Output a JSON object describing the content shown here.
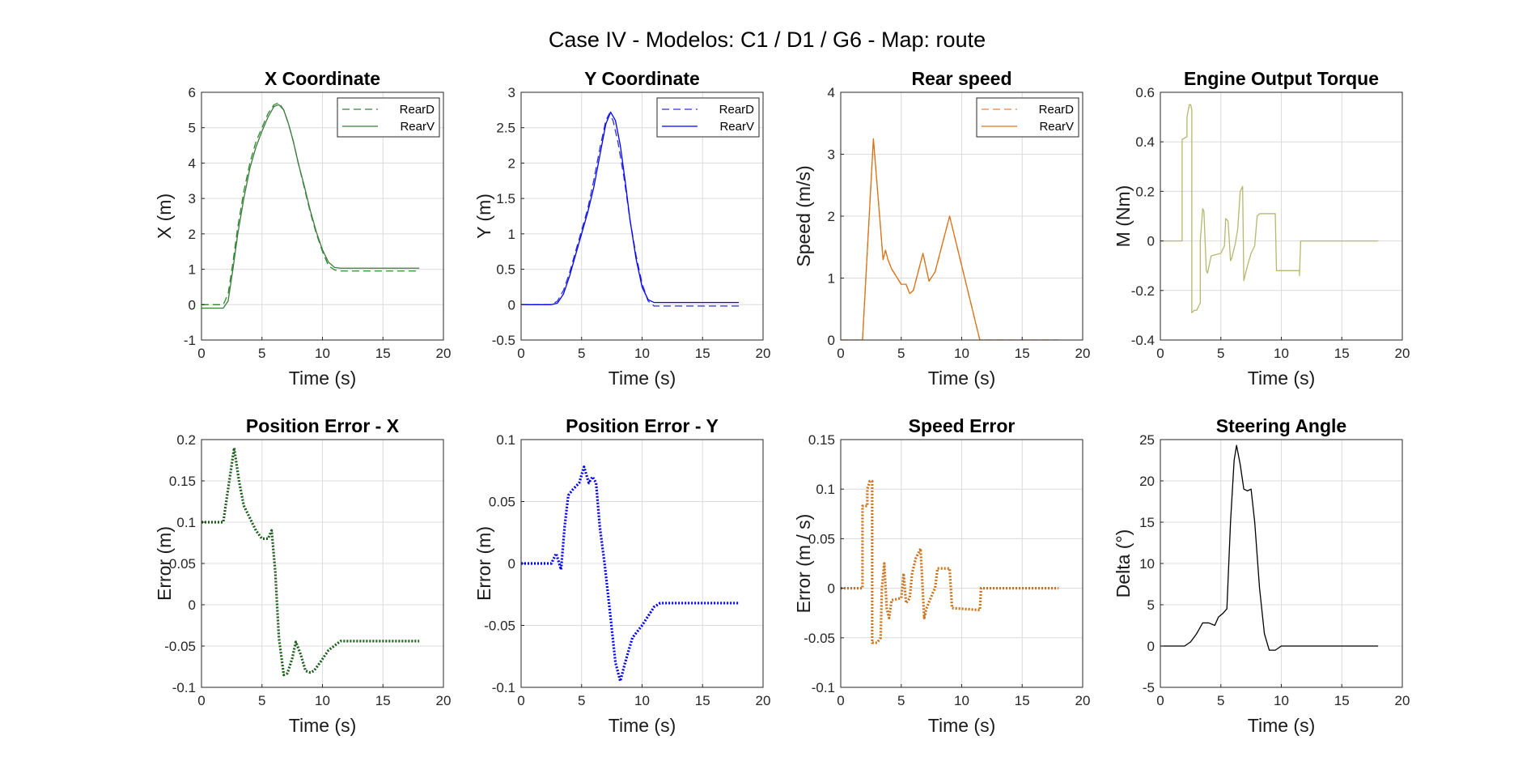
{
  "figure": {
    "title": "Case IV - Modelos: C1 / D1 / G6 - Map: route"
  },
  "chart_data": [
    {
      "type": "line",
      "title": "X Coordinate",
      "xlabel": "Time (s)",
      "ylabel": "X (m)",
      "xlim": [
        0,
        20
      ],
      "ylim": [
        -1,
        6
      ],
      "xticks": [
        0,
        5,
        10,
        15,
        20
      ],
      "yticks": [
        -1,
        0,
        1,
        2,
        3,
        4,
        5,
        6
      ],
      "grid": true,
      "legend": "top-right",
      "series": [
        {
          "name": "RearD",
          "color": "#2e8b2e",
          "style": "dashed",
          "x": [
            0,
            1.8,
            2.2,
            2.6,
            3,
            3.5,
            4,
            4.5,
            5,
            5.5,
            6,
            6.4,
            6.8,
            7.2,
            7.6,
            8,
            8.5,
            9,
            9.5,
            10,
            10.5,
            11,
            11.5,
            12,
            14,
            16,
            18
          ],
          "y": [
            0,
            0,
            0.3,
            1.2,
            2.2,
            3.2,
            4.0,
            4.6,
            5.0,
            5.4,
            5.65,
            5.7,
            5.5,
            5.1,
            4.6,
            4.0,
            3.3,
            2.6,
            2.0,
            1.5,
            1.1,
            0.98,
            0.95,
            0.95,
            0.95,
            0.95,
            0.95
          ]
        },
        {
          "name": "RearV",
          "color": "#3d7a3d",
          "style": "solid",
          "x": [
            0,
            1.8,
            2.2,
            2.6,
            3,
            3.5,
            4,
            4.5,
            5,
            5.5,
            6,
            6.4,
            6.8,
            7.2,
            7.6,
            8,
            8.5,
            9,
            9.5,
            10,
            10.5,
            11,
            11.5,
            12,
            14,
            16,
            18
          ],
          "y": [
            -0.1,
            -0.1,
            0.1,
            1.0,
            2.0,
            3.0,
            3.85,
            4.45,
            4.9,
            5.3,
            5.6,
            5.65,
            5.5,
            5.1,
            4.6,
            4.0,
            3.35,
            2.65,
            2.05,
            1.55,
            1.2,
            1.05,
            1.03,
            1.03,
            1.03,
            1.03,
            1.03
          ]
        }
      ]
    },
    {
      "type": "line",
      "title": "Y Coordinate",
      "xlabel": "Time (s)",
      "ylabel": "Y (m)",
      "xlim": [
        0,
        20
      ],
      "ylim": [
        -0.5,
        3
      ],
      "xticks": [
        0,
        5,
        10,
        15,
        20
      ],
      "yticks": [
        -0.5,
        0,
        0.5,
        1,
        1.5,
        2,
        2.5,
        3
      ],
      "grid": true,
      "legend": "top-right",
      "series": [
        {
          "name": "RearD",
          "color": "#3333cc",
          "style": "dashed",
          "x": [
            0,
            2.5,
            3,
            3.5,
            4,
            4.5,
            5,
            5.5,
            6,
            6.5,
            7,
            7.3,
            7.6,
            8,
            8.5,
            9,
            9.5,
            10,
            10.5,
            11,
            12,
            14,
            16,
            18
          ],
          "y": [
            0,
            0,
            0.05,
            0.2,
            0.45,
            0.75,
            1.05,
            1.35,
            1.75,
            2.2,
            2.6,
            2.7,
            2.6,
            2.3,
            1.8,
            1.2,
            0.7,
            0.3,
            0.05,
            -0.02,
            -0.02,
            -0.02,
            -0.02,
            -0.02
          ]
        },
        {
          "name": "RearV",
          "color": "#0000ff",
          "style": "solid",
          "x": [
            0,
            2.5,
            3,
            3.5,
            4,
            4.5,
            5,
            5.5,
            6,
            6.5,
            7,
            7.4,
            7.8,
            8.2,
            8.6,
            9,
            9.5,
            10,
            10.5,
            11,
            12,
            14,
            16,
            18
          ],
          "y": [
            0,
            0,
            0.02,
            0.15,
            0.4,
            0.7,
            1.0,
            1.3,
            1.65,
            2.1,
            2.55,
            2.72,
            2.6,
            2.25,
            1.75,
            1.2,
            0.65,
            0.25,
            0.07,
            0.03,
            0.03,
            0.03,
            0.03,
            0.03
          ]
        }
      ]
    },
    {
      "type": "line",
      "title": "Rear speed",
      "xlabel": "Time (s)",
      "ylabel": "Speed (m/s)",
      "xlim": [
        0,
        20
      ],
      "ylim": [
        0,
        4
      ],
      "xticks": [
        0,
        5,
        10,
        15,
        20
      ],
      "yticks": [
        0,
        1,
        2,
        3,
        4
      ],
      "grid": true,
      "legend": "top-right",
      "series": [
        {
          "name": "RearD",
          "color": "#e6862e",
          "style": "dashed",
          "x": [
            0,
            1.8,
            2.7,
            3.5,
            3.7,
            3.9,
            4.2,
            5.0,
            5.4,
            5.7,
            6.0,
            6.4,
            6.8,
            7.3,
            7.8,
            9.0,
            11.5,
            12,
            18
          ],
          "y": [
            0,
            0,
            3.25,
            1.3,
            1.45,
            1.3,
            1.15,
            0.9,
            0.9,
            0.75,
            0.8,
            1.1,
            1.4,
            0.95,
            1.1,
            2.0,
            0,
            0,
            0
          ]
        },
        {
          "name": "RearV",
          "color": "#d9731a",
          "style": "solid",
          "x": [
            0,
            1.8,
            2.7,
            3.5,
            3.7,
            3.9,
            4.2,
            5.0,
            5.4,
            5.7,
            6.0,
            6.4,
            6.8,
            7.3,
            7.8,
            9.0,
            11.5,
            12,
            18
          ],
          "y": [
            0,
            0,
            3.25,
            1.3,
            1.45,
            1.3,
            1.15,
            0.9,
            0.9,
            0.75,
            0.8,
            1.1,
            1.4,
            0.95,
            1.1,
            2.0,
            0,
            0,
            0
          ]
        }
      ]
    },
    {
      "type": "line",
      "title": "Engine Output Torque",
      "xlabel": "Time (s)",
      "ylabel": "M (Nm)",
      "xlim": [
        0,
        20
      ],
      "ylim": [
        -0.4,
        0.6
      ],
      "xticks": [
        0,
        5,
        10,
        15,
        20
      ],
      "yticks": [
        -0.4,
        -0.2,
        0,
        0.2,
        0.4,
        0.6
      ],
      "grid": true,
      "legend": "none",
      "series": [
        {
          "color": "#b5b86e",
          "style": "solid",
          "x": [
            0,
            1.8,
            1.8,
            2.2,
            2.2,
            2.4,
            2.5,
            2.6,
            2.6,
            2.8,
            3.0,
            3.3,
            3.3,
            3.5,
            3.6,
            3.8,
            3.9,
            4.2,
            5.0,
            5.3,
            5.4,
            5.6,
            5.8,
            5.9,
            6.2,
            6.4,
            6.6,
            6.8,
            6.9,
            7.2,
            7.5,
            7.8,
            8.0,
            8.2,
            8.8,
            9.0,
            9.5,
            9.6,
            10.5,
            11.5,
            11.5,
            11.6,
            13,
            18
          ],
          "y": [
            0,
            0,
            0.41,
            0.42,
            0.5,
            0.55,
            0.55,
            0.53,
            -0.29,
            -0.28,
            -0.28,
            -0.25,
            0,
            0.13,
            0.12,
            -0.12,
            -0.13,
            -0.06,
            -0.05,
            -0.02,
            0.09,
            0.08,
            -0.08,
            -0.07,
            -0.01,
            0.05,
            0.2,
            0.22,
            -0.16,
            -0.1,
            -0.05,
            -0.02,
            0.1,
            0.11,
            0.11,
            0.11,
            0.11,
            -0.12,
            -0.12,
            -0.12,
            -0.14,
            0,
            0,
            0
          ]
        }
      ]
    },
    {
      "type": "line",
      "title": "Position Error - X",
      "xlabel": "Time (s)",
      "ylabel": "Error (m)",
      "xlim": [
        0,
        20
      ],
      "ylim": [
        -0.1,
        0.2
      ],
      "xticks": [
        0,
        5,
        10,
        15,
        20
      ],
      "yticks": [
        -0.1,
        -0.05,
        0,
        0.05,
        0.1,
        0.15,
        0.2
      ],
      "grid": true,
      "legend": "none",
      "series": [
        {
          "color": "#1a5c1a",
          "style": "dotted",
          "x": [
            0,
            1.8,
            2.3,
            2.7,
            3.1,
            3.5,
            4.0,
            4.5,
            5.0,
            5.5,
            5.8,
            6.1,
            6.4,
            6.8,
            7.1,
            7.5,
            7.8,
            8.2,
            8.6,
            9.0,
            9.3,
            9.8,
            10.5,
            11.5,
            12,
            14,
            16,
            18
          ],
          "y": [
            0.1,
            0.1,
            0.15,
            0.19,
            0.15,
            0.12,
            0.105,
            0.09,
            0.08,
            0.08,
            0.09,
            0.04,
            -0.04,
            -0.085,
            -0.083,
            -0.065,
            -0.045,
            -0.06,
            -0.08,
            -0.082,
            -0.08,
            -0.07,
            -0.055,
            -0.044,
            -0.044,
            -0.044,
            -0.044,
            -0.044
          ]
        }
      ]
    },
    {
      "type": "line",
      "title": "Position Error - Y",
      "xlabel": "Time (s)",
      "ylabel": "Error (m)",
      "xlim": [
        0,
        20
      ],
      "ylim": [
        -0.1,
        0.1
      ],
      "xticks": [
        0,
        5,
        10,
        15,
        20
      ],
      "yticks": [
        -0.1,
        -0.05,
        0,
        0.05,
        0.1
      ],
      "grid": true,
      "legend": "none",
      "series": [
        {
          "color": "#0000ee",
          "style": "dotted",
          "x": [
            0,
            2.5,
            2.9,
            3.3,
            3.6,
            3.9,
            4.3,
            4.8,
            5.2,
            5.6,
            5.9,
            6.2,
            6.5,
            6.9,
            7.3,
            7.8,
            8.2,
            8.6,
            9.2,
            10,
            11.0,
            11.5,
            13,
            16,
            18
          ],
          "y": [
            0,
            0,
            0.008,
            -0.005,
            0.03,
            0.055,
            0.06,
            0.065,
            0.078,
            0.065,
            0.07,
            0.065,
            0.03,
            0.0,
            -0.035,
            -0.08,
            -0.095,
            -0.08,
            -0.06,
            -0.05,
            -0.035,
            -0.032,
            -0.032,
            -0.032,
            -0.032
          ]
        }
      ]
    },
    {
      "type": "line",
      "title": "Speed Error",
      "xlabel": "Time (s)",
      "ylabel": "Error (m / s)",
      "xlim": [
        0,
        20
      ],
      "ylim": [
        -0.1,
        0.15
      ],
      "xticks": [
        0,
        5,
        10,
        15,
        20
      ],
      "yticks": [
        -0.1,
        -0.05,
        0,
        0.05,
        0.1,
        0.15
      ],
      "grid": true,
      "legend": "none",
      "series": [
        {
          "color": "#c8731a",
          "style": "dotted",
          "x": [
            0,
            1.8,
            1.8,
            2.2,
            2.2,
            2.4,
            2.6,
            2.6,
            3.0,
            3.3,
            3.4,
            3.6,
            3.8,
            4.0,
            4.2,
            5.0,
            5.2,
            5.4,
            5.7,
            5.9,
            6.2,
            6.6,
            6.9,
            7.1,
            7.6,
            7.8,
            8.0,
            8.5,
            9.0,
            9.2,
            11.5,
            11.6,
            13,
            18
          ],
          "y": [
            0,
            0,
            0.083,
            0.083,
            0.1,
            0.108,
            0.108,
            -0.055,
            -0.055,
            -0.05,
            0.0,
            0.025,
            -0.02,
            -0.03,
            -0.012,
            -0.01,
            0.015,
            -0.015,
            -0.01,
            0.015,
            0.03,
            0.04,
            -0.03,
            -0.02,
            -0.005,
            0.0,
            0.02,
            0.02,
            0.02,
            -0.02,
            -0.022,
            0,
            0,
            0
          ]
        }
      ]
    },
    {
      "type": "line",
      "title": "Steering Angle",
      "xlabel": "Time (s)",
      "ylabel": "Delta (°)",
      "xlim": [
        0,
        20
      ],
      "ylim": [
        -5,
        25
      ],
      "xticks": [
        0,
        5,
        10,
        15,
        20
      ],
      "yticks": [
        -5,
        0,
        5,
        10,
        15,
        20,
        25
      ],
      "grid": true,
      "legend": "none",
      "series": [
        {
          "color": "#000000",
          "style": "solid",
          "x": [
            0,
            2.0,
            2.5,
            3.0,
            3.5,
            4.0,
            4.5,
            4.8,
            5.2,
            5.5,
            5.8,
            6.1,
            6.3,
            6.6,
            6.9,
            7.2,
            7.5,
            7.8,
            8.2,
            8.6,
            9.0,
            9.5,
            10.0,
            11,
            13,
            16,
            18
          ],
          "y": [
            0,
            0,
            0.5,
            1.5,
            2.8,
            2.8,
            2.5,
            3.5,
            4.0,
            4.5,
            15.0,
            22.5,
            24.3,
            22.0,
            19.0,
            18.8,
            19.0,
            15.0,
            7.0,
            1.5,
            -0.5,
            -0.5,
            0,
            0,
            0,
            0,
            0
          ]
        }
      ]
    }
  ]
}
